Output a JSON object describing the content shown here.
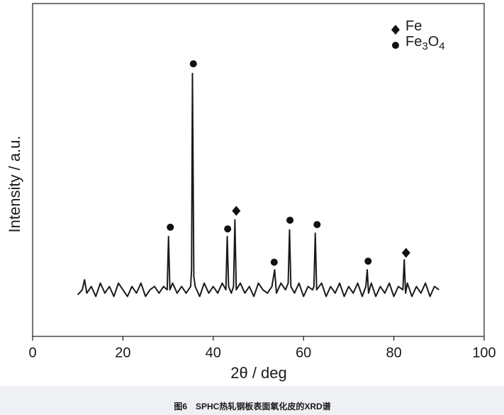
{
  "chart_data": {
    "type": "line",
    "caption": "图6　SPHC热轧钢板表面氧化皮的XRD谱",
    "xlabel": "2θ / deg",
    "ylabel": "Intensity / a.u.",
    "xlim": [
      0,
      100
    ],
    "xticks": [
      0,
      20,
      40,
      60,
      80,
      100
    ],
    "ylim": [
      0,
      100
    ],
    "trace": {
      "color": "#1a1a1a",
      "x": [
        10,
        11,
        11.5,
        12,
        13,
        14,
        15,
        16,
        17,
        18,
        19,
        20,
        21,
        22,
        23,
        24,
        25,
        26,
        27,
        28,
        29,
        29.8,
        30.1,
        30.4,
        31,
        32,
        33,
        34,
        35,
        35.2,
        35.4,
        35.7,
        36,
        37,
        38,
        39,
        40,
        41,
        42,
        42.8,
        43.1,
        43.4,
        44,
        44.5,
        44.8,
        45.1,
        46,
        47,
        48,
        49,
        50,
        51,
        52,
        53,
        53.6,
        54,
        55,
        56,
        56.6,
        56.9,
        57.2,
        58,
        59,
        60,
        61,
        62,
        62.3,
        62.6,
        62.9,
        64,
        65,
        66,
        67,
        68,
        69,
        70,
        71,
        72,
        73,
        73.8,
        74.1,
        74.4,
        75,
        76,
        77,
        78,
        79,
        80,
        81,
        82,
        82.3,
        82.6,
        83,
        84,
        85,
        86,
        87,
        88,
        89,
        90
      ],
      "values": [
        12.5,
        14,
        17,
        13,
        15,
        12,
        16,
        13,
        15,
        12,
        16,
        14,
        12,
        15,
        13,
        16,
        12,
        14,
        15,
        13,
        15,
        14,
        30,
        14,
        16,
        13,
        15,
        13,
        15,
        20,
        79,
        18,
        15,
        12,
        16,
        13,
        15,
        13,
        16,
        14,
        30,
        15,
        13,
        15,
        35,
        14,
        16,
        13,
        15,
        12,
        16,
        14,
        13,
        15,
        20,
        13,
        16,
        14,
        16,
        32,
        15,
        13,
        16,
        12,
        15,
        14,
        15,
        31,
        14,
        16,
        12,
        15,
        13,
        16,
        12,
        15,
        13,
        16,
        12,
        15,
        20,
        13,
        16,
        12,
        15,
        13,
        16,
        12,
        15,
        14,
        23,
        13,
        16,
        12,
        15,
        13,
        16,
        12,
        15,
        14
      ]
    },
    "series": [
      {
        "name": "Fe",
        "shape": "diamond",
        "color": "#111111",
        "x": [
          45.1,
          82.7
        ],
        "values": [
          37.7,
          25.1
        ]
      },
      {
        "name": "Fe3O4",
        "shape": "circle",
        "color": "#111111",
        "x": [
          35.6,
          30.5,
          43.2,
          53.5,
          57.0,
          63.0,
          74.3
        ],
        "values": [
          81.9,
          32.8,
          32.3,
          22.3,
          34.9,
          33.6,
          22.6
        ]
      }
    ]
  }
}
